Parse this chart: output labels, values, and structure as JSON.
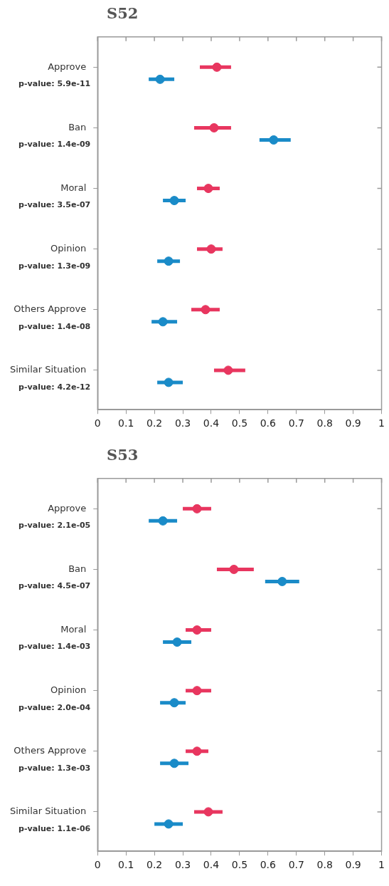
{
  "chart_data": [
    {
      "type": "scatter",
      "title": "S52",
      "orientation": "horizontal",
      "categories": [
        "Approve",
        "Ban",
        "Moral",
        "Opinion",
        "Others Approve",
        "Similar Situation"
      ],
      "xlim": [
        0,
        1
      ],
      "xticks": [
        0,
        0.1,
        0.2,
        0.3,
        0.4,
        0.5,
        0.6,
        0.7,
        0.8,
        0.9,
        1
      ],
      "grid": false,
      "legend": false,
      "marker": "circle",
      "series": [
        {
          "color": "#e8365f",
          "values": [
            0.42,
            0.41,
            0.39,
            0.4,
            0.38,
            0.46
          ],
          "errors": [
            [
              0.36,
              0.47
            ],
            [
              0.34,
              0.47
            ],
            [
              0.35,
              0.43
            ],
            [
              0.35,
              0.44
            ],
            [
              0.33,
              0.43
            ],
            [
              0.41,
              0.52
            ]
          ]
        },
        {
          "color": "#1a8bc8",
          "values": [
            0.22,
            0.62,
            0.27,
            0.25,
            0.23,
            0.25
          ],
          "errors": [
            [
              0.18,
              0.27
            ],
            [
              0.57,
              0.68
            ],
            [
              0.23,
              0.31
            ],
            [
              0.21,
              0.29
            ],
            [
              0.19,
              0.28
            ],
            [
              0.21,
              0.3
            ]
          ]
        }
      ],
      "annotations": [
        "p-value: 5.9e-11",
        "p-value: 1.4e-09",
        "p-value: 3.5e-07",
        "p-value: 1.3e-09",
        "p-value: 1.4e-08",
        "p-value: 4.2e-12"
      ]
    },
    {
      "type": "scatter",
      "title": "S53",
      "orientation": "horizontal",
      "categories": [
        "Approve",
        "Ban",
        "Moral",
        "Opinion",
        "Others Approve",
        "Similar Situation"
      ],
      "xlim": [
        0,
        1
      ],
      "xticks": [
        0,
        0.1,
        0.2,
        0.3,
        0.4,
        0.5,
        0.6,
        0.7,
        0.8,
        0.9,
        1
      ],
      "grid": false,
      "legend": false,
      "marker": "circle",
      "series": [
        {
          "color": "#e8365f",
          "values": [
            0.35,
            0.48,
            0.35,
            0.35,
            0.35,
            0.39
          ],
          "errors": [
            [
              0.3,
              0.4
            ],
            [
              0.42,
              0.55
            ],
            [
              0.31,
              0.4
            ],
            [
              0.31,
              0.4
            ],
            [
              0.31,
              0.39
            ],
            [
              0.34,
              0.44
            ]
          ]
        },
        {
          "color": "#1a8bc8",
          "values": [
            0.23,
            0.65,
            0.28,
            0.27,
            0.27,
            0.25
          ],
          "errors": [
            [
              0.18,
              0.28
            ],
            [
              0.59,
              0.71
            ],
            [
              0.23,
              0.33
            ],
            [
              0.22,
              0.31
            ],
            [
              0.22,
              0.32
            ],
            [
              0.2,
              0.3
            ]
          ]
        }
      ],
      "annotations": [
        "p-value: 2.1e-05",
        "p-value: 4.5e-07",
        "p-value: 1.4e-03",
        "p-value: 2.0e-04",
        "p-value: 1.3e-03",
        "p-value: 1.1e-06"
      ]
    }
  ]
}
